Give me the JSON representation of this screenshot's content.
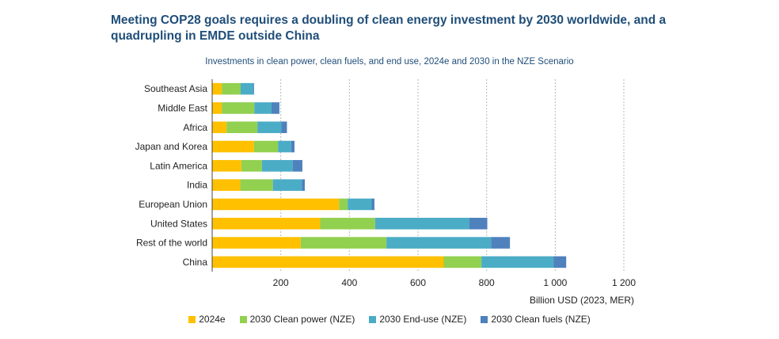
{
  "title": "Meeting COP28 goals requires a doubling of clean energy investment by 2030 worldwide, and a quadrupling in EMDE outside China",
  "chart_data": {
    "type": "bar",
    "orientation": "horizontal",
    "stacked": true,
    "subtitle": "Investments in clean power, clean fuels, and end use, 2024e and 2030 in the NZE Scenario",
    "xlabel": "Billion USD (2023, MER)",
    "xlim": [
      0,
      1200
    ],
    "xticks": [
      "",
      "200",
      "400",
      "600",
      "800",
      "1 000",
      "1 200"
    ],
    "grid": "vertical dashed",
    "legend_position": "bottom",
    "categories": [
      "Southeast Asia",
      "Middle East",
      "Africa",
      "Japan and Korea",
      "Latin America",
      "India",
      "European Union",
      "United States",
      "Rest of the world",
      "China"
    ],
    "series": [
      {
        "name": "2024e",
        "color": "#FFC000",
        "values": [
          28,
          28,
          42,
          122,
          85,
          82,
          370,
          315,
          258,
          675
        ]
      },
      {
        "name": "2030 Clean power (NZE)",
        "color": "#92D050",
        "values": [
          55,
          95,
          90,
          70,
          60,
          95,
          25,
          160,
          250,
          110
        ]
      },
      {
        "name": "2030 End-use (NZE)",
        "color": "#4BACC6",
        "values": [
          37,
          50,
          70,
          38,
          90,
          85,
          70,
          275,
          305,
          210
        ]
      },
      {
        "name": "2030 Clean fuels (NZE)",
        "color": "#4F81BD",
        "values": [
          2,
          23,
          16,
          10,
          28,
          8,
          8,
          52,
          55,
          37
        ]
      }
    ]
  }
}
